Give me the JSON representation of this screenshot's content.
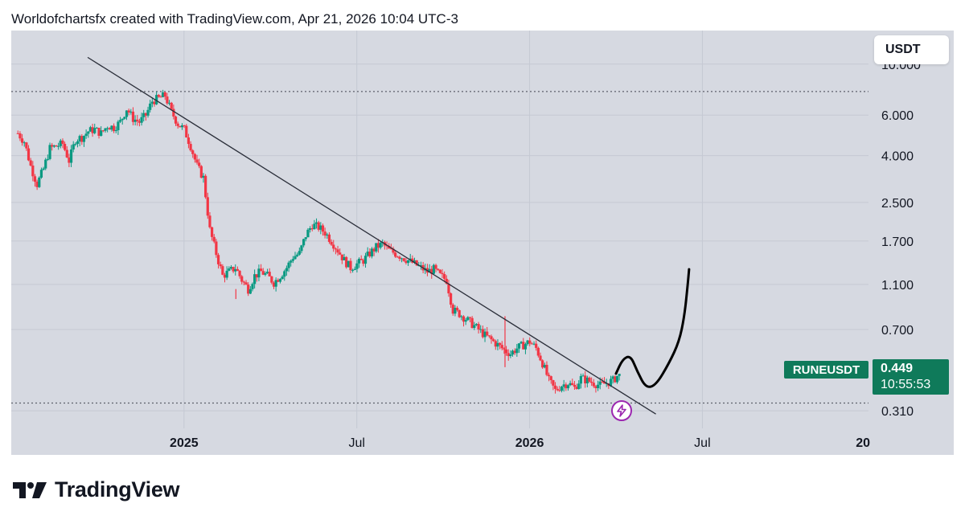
{
  "header": {
    "caption": "Worldofchartsfx created with TradingView.com, Apr 21, 2026 10:04 UTC-3"
  },
  "footer": {
    "brand": "TradingView"
  },
  "colors": {
    "bullish": "#089981",
    "bearish": "#f23645",
    "background": "#d6d9e1",
    "label": "#0f7a5a",
    "trendline": "#2a2e39"
  },
  "chart_data": {
    "type": "candlestick",
    "symbol": "RUNEUSDT",
    "currency": "USDT",
    "scale": "log",
    "y_ticks": [
      "10.000",
      "6.000",
      "4.000",
      "2.500",
      "1.700",
      "1.100",
      "0.700",
      "0.310"
    ],
    "y_tick_values": [
      10.0,
      6.0,
      4.0,
      2.5,
      1.7,
      1.1,
      0.7,
      0.31
    ],
    "ylim": [
      0.26,
      14.0
    ],
    "x_ticks": [
      {
        "label": "2025",
        "bold": true,
        "week": 26
      },
      {
        "label": "Jul",
        "bold": false,
        "week": 52
      },
      {
        "label": "2026",
        "bold": true,
        "week": 78
      },
      {
        "label": "Jul",
        "bold": false,
        "week": 104
      },
      {
        "label": "20",
        "bold": true,
        "week": 130
      }
    ],
    "xlim_weeks": [
      0,
      129
    ],
    "last_price": "0.449",
    "countdown": "10:55:53",
    "horizontal_levels": [
      7.6,
      0.335
    ],
    "trendline": {
      "start": {
        "week": 11.5,
        "price": 10.7
      },
      "end": {
        "week": 97,
        "price": 0.3
      }
    },
    "projection_path": [
      {
        "week": 91,
        "price": 0.45
      },
      {
        "week": 92,
        "price": 0.52
      },
      {
        "week": 93.2,
        "price": 0.54
      },
      {
        "week": 94.2,
        "price": 0.46
      },
      {
        "week": 95.5,
        "price": 0.39
      },
      {
        "week": 97,
        "price": 0.4
      },
      {
        "week": 99,
        "price": 0.5
      },
      {
        "week": 100.5,
        "price": 0.62
      },
      {
        "week": 101.3,
        "price": 0.8
      },
      {
        "week": 101.8,
        "price": 1.1
      },
      {
        "week": 102,
        "price": 1.28
      }
    ],
    "series_daily_close": [
      5.0,
      4.6,
      3.6,
      3.0,
      3.5,
      4.3,
      4.4,
      4.5,
      3.8,
      4.7,
      4.8,
      5.1,
      5.2,
      5.0,
      5.4,
      5.3,
      5.6,
      6.4,
      5.8,
      5.6,
      6.0,
      6.9,
      7.1,
      7.3,
      6.2,
      5.5,
      5.2,
      4.4,
      3.6,
      3.2,
      1.9,
      1.5,
      1.2,
      1.25,
      1.3,
      1.15,
      1.05,
      1.2,
      1.25,
      1.2,
      1.12,
      1.2,
      1.3,
      1.45,
      1.5,
      1.8,
      2.0,
      1.95,
      1.85,
      1.7,
      1.55,
      1.4,
      1.3,
      1.35,
      1.4,
      1.5,
      1.6,
      1.65,
      1.55,
      1.5,
      1.45,
      1.4,
      1.35,
      1.3,
      1.25,
      1.28,
      1.2,
      1.15,
      0.85,
      0.82,
      0.78,
      0.74,
      0.7,
      0.66,
      0.63,
      0.6,
      0.57,
      0.55,
      0.58,
      0.6,
      0.62,
      0.58,
      0.5,
      0.42,
      0.38,
      0.4,
      0.41,
      0.39,
      0.43,
      0.42,
      0.41,
      0.4,
      0.41,
      0.42,
      0.449
    ]
  }
}
